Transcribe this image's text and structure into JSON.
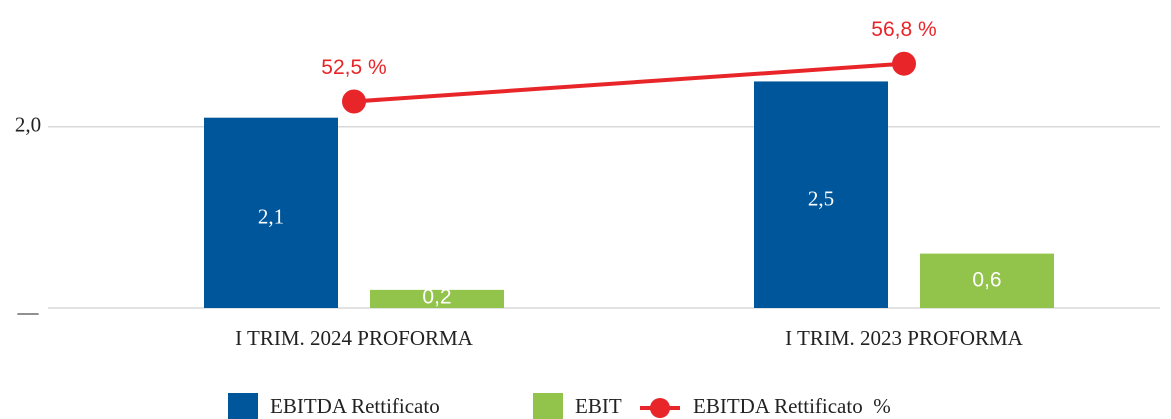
{
  "chart_data": {
    "type": "bar",
    "categories": [
      "I TRIM. 2024 PROFORMA",
      "I TRIM. 2023 PROFORMA"
    ],
    "series": [
      {
        "name": "EBITDA Rettificato",
        "color": "#00569a",
        "values": [
          2.1,
          2.5
        ],
        "value_labels": [
          "2,1",
          "2,5"
        ]
      },
      {
        "name": "EBIT",
        "color": "#92c34b",
        "values": [
          0.2,
          0.6
        ],
        "value_labels": [
          "0,2",
          "0,6"
        ]
      },
      {
        "name": "EBITDA Rettificato  %",
        "color": "#e8262a",
        "type": "line",
        "axis": "y2",
        "values": [
          52.5,
          56.8
        ],
        "value_labels": [
          "52,5 %",
          "56,8 %"
        ]
      }
    ],
    "ylim": [
      0,
      3.2
    ],
    "yticks": [
      {
        "value": 0,
        "label": "—"
      },
      {
        "value": 2,
        "label": "2,0"
      }
    ],
    "y2lim": [
      29,
      62
    ],
    "grid": true,
    "legend": "bottom"
  }
}
